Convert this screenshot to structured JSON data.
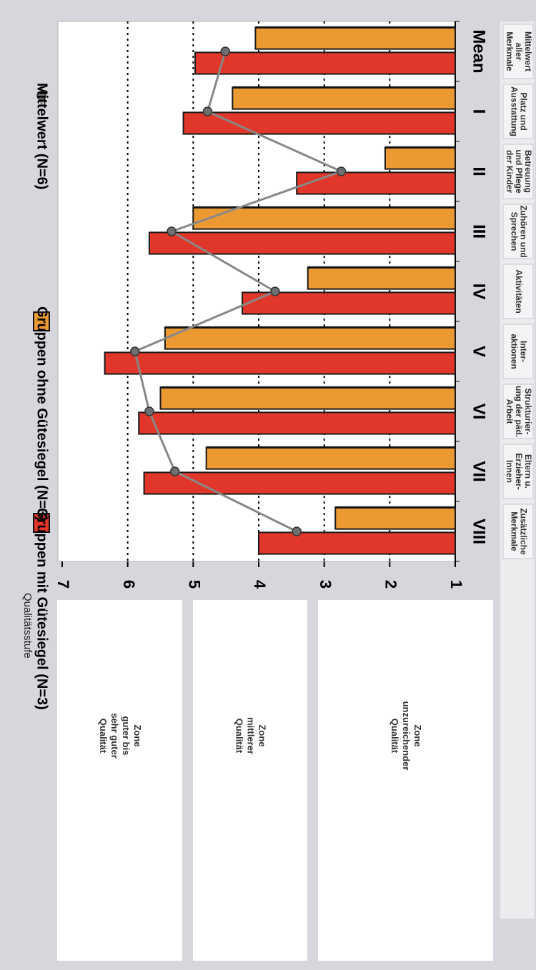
{
  "chart_data": {
    "type": "bar",
    "orientation": "vertical",
    "rotated_page": "90 degrees clockwise (landscape chart printed on portrait page)",
    "categories": [
      "Mean",
      "I",
      "II",
      "III",
      "IV",
      "V",
      "VI",
      "VII",
      "VIII"
    ],
    "category_descriptions": [
      [
        "Mittelwert",
        "aller",
        "Merkmale"
      ],
      [
        "Platz und",
        "Ausstattung"
      ],
      [
        "Betreuung",
        "und Pflege",
        "der Kinder"
      ],
      [
        "Zuhören und",
        "Sprechen"
      ],
      [
        "Aktivitäten"
      ],
      [
        "Inter-",
        "aktionen"
      ],
      [
        "Strukturier-",
        "ung der päd.",
        "Arbeit"
      ],
      [
        "Eltern u.",
        "Erzieher-",
        "Innen"
      ],
      [
        "Zusätzliche",
        "Merkmale"
      ]
    ],
    "series": [
      {
        "name": "Gruppen mit Gütesiegel (N=3)",
        "type": "bar",
        "color": "#e0372a",
        "values": [
          4.97,
          5.15,
          3.42,
          5.67,
          4.25,
          6.35,
          5.83,
          5.75,
          4.0
        ]
      },
      {
        "name": "Gruppen ohne Gütesiegel (N=3)",
        "type": "bar",
        "color": "#eb9a33",
        "values": [
          4.05,
          4.4,
          2.07,
          5.0,
          3.25,
          5.43,
          5.5,
          4.8,
          2.83
        ]
      },
      {
        "name": "Mittelwert (N=6)",
        "type": "line",
        "color": "#888888",
        "values": [
          4.51,
          4.78,
          2.74,
          5.33,
          3.75,
          5.89,
          5.67,
          5.28,
          3.42
        ]
      }
    ],
    "ylabel": "Qualitätsstufe",
    "ylim": [
      1,
      7
    ],
    "yticks": [
      1,
      2,
      3,
      4,
      5,
      6,
      7
    ],
    "grid": "dotted lines at 2, 3, 4, 5, 6",
    "legend_position": "top",
    "zones": [
      {
        "label": [
          "Zone",
          "guter bis",
          "sehr guter",
          "Qualität"
        ]
      },
      {
        "label": [
          "Zone",
          "mittlerer",
          "Qualität"
        ]
      },
      {
        "label": [
          "Zone",
          "unzureichender",
          "Qualität"
        ]
      }
    ]
  },
  "colors": {
    "outer_panel": "#d6d6dc",
    "plot_background": "#ffffff",
    "bar_with_seal": "#e0372a",
    "bar_without_seal": "#eb9a33",
    "mean_line": "#888888",
    "mean_marker": "#6f6f6f"
  }
}
